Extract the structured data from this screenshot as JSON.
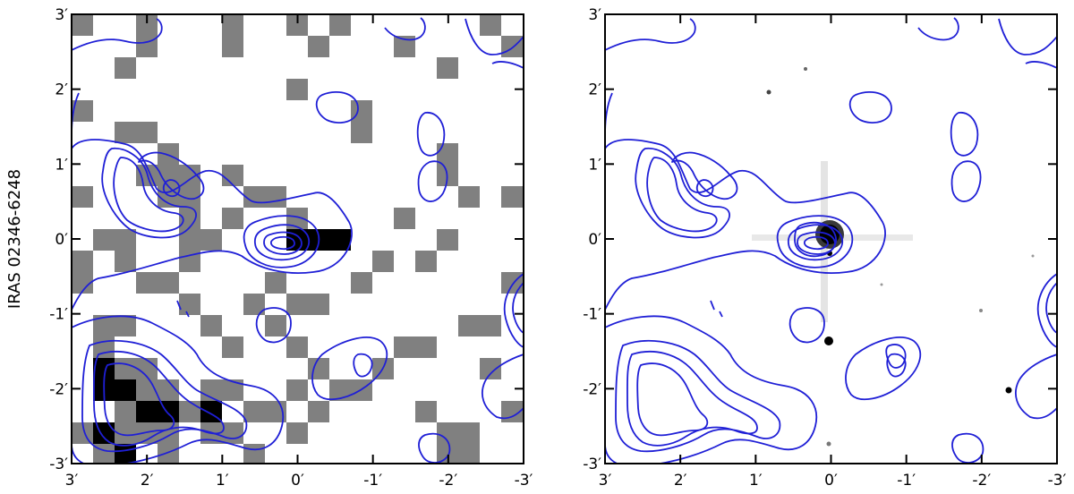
{
  "figure": {
    "ylabel": "IRAS 02346-6248",
    "panels": [
      {
        "id": "left",
        "x_ticks": [
          "3′",
          "2′",
          "1′",
          "0′",
          "-1′",
          "-2′",
          "-3′"
        ],
        "y_ticks": [
          "3′",
          "2′",
          "1′",
          "0′",
          "-1′",
          "-2′",
          "-3′"
        ],
        "background": "pixelated grayscale map"
      },
      {
        "id": "right",
        "x_ticks": [
          "3′",
          "2′",
          "1′",
          "0′",
          "-1′",
          "-2′",
          "-3′"
        ],
        "y_ticks": [
          "3′",
          "2′",
          "1′",
          "0′",
          "-1′",
          "-2′",
          "-3′"
        ],
        "background": "optical grayscale image"
      }
    ],
    "colors": {
      "contour": "#1f1fd6",
      "gray_pixel": "#808080",
      "dark_pixel": "#000000",
      "frame": "#000000"
    }
  }
}
